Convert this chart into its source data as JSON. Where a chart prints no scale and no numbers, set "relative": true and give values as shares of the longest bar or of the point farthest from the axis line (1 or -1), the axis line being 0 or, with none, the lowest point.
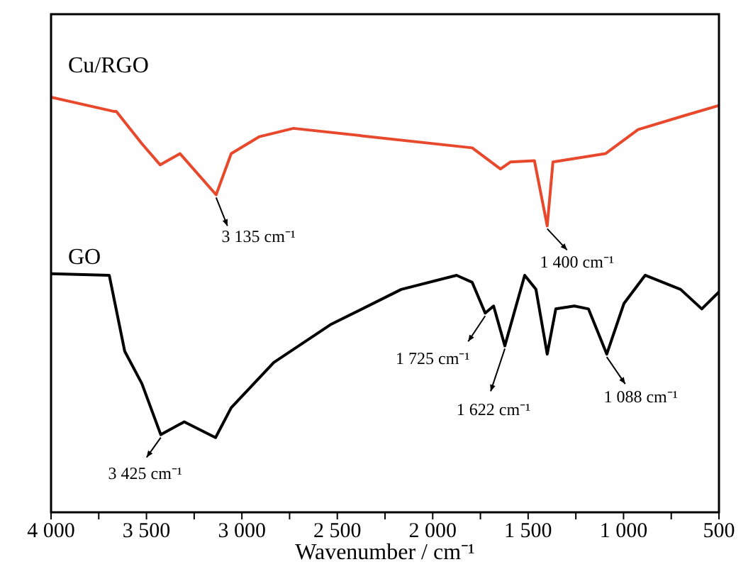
{
  "chart_data": {
    "type": "line",
    "xlabel": "Wavenumber / cm⁻¹",
    "relative": true,
    "xlim": [
      4000,
      500
    ],
    "xticks": [
      {
        "value": 4000,
        "label": "4 000"
      },
      {
        "value": 3750,
        "label": null
      },
      {
        "value": 3500,
        "label": "3 500"
      },
      {
        "value": 3250,
        "label": null
      },
      {
        "value": 3000,
        "label": "3 000"
      },
      {
        "value": 2750,
        "label": null
      },
      {
        "value": 2500,
        "label": "2 500"
      },
      {
        "value": 2250,
        "label": null
      },
      {
        "value": 2000,
        "label": "2 000"
      },
      {
        "value": 1750,
        "label": null
      },
      {
        "value": 1500,
        "label": "1 500"
      },
      {
        "value": 1250,
        "label": null
      },
      {
        "value": 1000,
        "label": "1 000"
      },
      {
        "value": 750,
        "label": null
      },
      {
        "value": 500,
        "label": "500"
      }
    ],
    "marker": "none",
    "line_style": "solid",
    "series": [
      {
        "name": "Cu/RGO",
        "color": "#e8482c",
        "x": [
          4000,
          3673,
          3658,
          3524,
          3428,
          3324,
          3135,
          3056,
          2908,
          2730,
          1793,
          1645,
          1593,
          1467,
          1400,
          1370,
          1095,
          924,
          679,
          500
        ],
        "values": [
          1.0,
          0.966,
          0.966,
          0.888,
          0.837,
          0.864,
          0.765,
          0.864,
          0.905,
          0.925,
          0.878,
          0.827,
          0.844,
          0.847,
          0.69,
          0.844,
          0.864,
          0.922,
          0.956,
          0.98
        ]
      },
      {
        "name": "GO",
        "color": "#000000",
        "x": [
          4000,
          3695,
          3614,
          3524,
          3425,
          3302,
          3138,
          3056,
          2833,
          2536,
          2165,
          1875,
          1793,
          1725,
          1681,
          1622,
          1518,
          1459,
          1400,
          1355,
          1258,
          1184,
          1088,
          998,
          887,
          701,
          590,
          500
        ],
        "values": [
          0.575,
          0.571,
          0.388,
          0.31,
          0.187,
          0.218,
          0.18,
          0.252,
          0.361,
          0.452,
          0.537,
          0.571,
          0.554,
          0.48,
          0.497,
          0.401,
          0.571,
          0.537,
          0.381,
          0.49,
          0.497,
          0.49,
          0.381,
          0.503,
          0.571,
          0.537,
          0.49,
          0.531
        ]
      }
    ],
    "annotations": [
      {
        "text": "3 135 cm⁻¹",
        "x": 3135,
        "y": 0.765
      },
      {
        "text": "1 400 cm⁻¹",
        "x": 1400,
        "y": 0.69
      },
      {
        "text": "1 725 cm⁻¹",
        "x": 1725,
        "y": 0.48
      },
      {
        "text": "1 622 cm⁻¹",
        "x": 1622,
        "y": 0.401
      },
      {
        "text": "1 088 cm⁻¹",
        "x": 1088,
        "y": 0.381
      },
      {
        "text": "3 425 cm⁻¹",
        "x": 3425,
        "y": 0.187
      }
    ]
  }
}
